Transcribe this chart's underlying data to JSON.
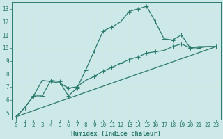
{
  "title": "",
  "xlabel": "Humidex (Indice chaleur)",
  "ylabel": "",
  "xlim": [
    -0.5,
    23.5
  ],
  "ylim": [
    4.5,
    13.5
  ],
  "xticks": [
    0,
    1,
    2,
    3,
    4,
    5,
    6,
    7,
    8,
    9,
    10,
    11,
    12,
    13,
    14,
    15,
    16,
    17,
    18,
    19,
    20,
    21,
    22,
    23
  ],
  "yticks": [
    5,
    6,
    7,
    8,
    9,
    10,
    11,
    12,
    13
  ],
  "bg_color": "#cde8e8",
  "grid_color": "#b8d8d8",
  "line_color": "#2a7a6a",
  "line1_x": [
    0,
    1,
    2,
    3,
    4,
    5,
    6,
    7,
    8,
    9,
    10,
    11,
    12,
    13,
    14,
    15,
    16,
    17,
    18,
    19,
    20,
    21,
    22,
    23
  ],
  "line1_y": [
    4.7,
    5.4,
    6.3,
    6.3,
    7.5,
    7.4,
    6.3,
    6.9,
    8.3,
    9.8,
    11.3,
    11.6,
    12.0,
    12.8,
    13.0,
    13.2,
    12.0,
    10.7,
    10.6,
    11.0,
    10.0,
    10.1,
    10.1,
    10.1
  ],
  "line2_x": [
    0,
    1,
    2,
    3,
    4,
    5,
    6,
    7,
    8,
    9,
    10,
    11,
    12,
    13,
    14,
    15,
    16,
    17,
    18,
    19,
    20,
    21,
    22,
    23
  ],
  "line2_y": [
    4.7,
    5.4,
    6.3,
    7.5,
    7.4,
    7.3,
    6.9,
    7.0,
    7.5,
    7.8,
    8.2,
    8.5,
    8.8,
    9.1,
    9.3,
    9.6,
    9.7,
    9.8,
    10.1,
    10.3,
    10.0,
    10.0,
    10.1,
    10.1
  ],
  "line3_x": [
    0,
    23
  ],
  "line3_y": [
    4.7,
    10.1
  ],
  "marker_size": 2.2,
  "linewidth": 0.9,
  "font_size": 6.5,
  "tick_fontsize": 5.5
}
